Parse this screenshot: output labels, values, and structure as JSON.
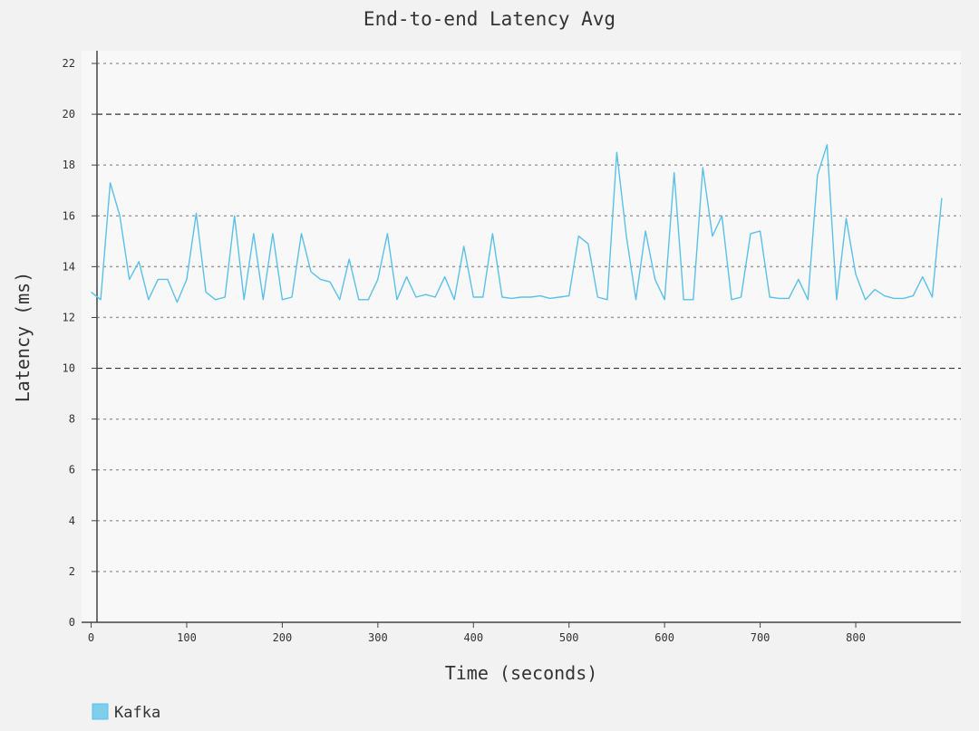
{
  "chart_data": {
    "type": "line",
    "title": "End-to-end Latency Avg",
    "xlabel": "Time (seconds)",
    "ylabel": "Latency (ms)",
    "xlim": [
      -10,
      910
    ],
    "ylim": [
      0,
      22.5
    ],
    "x_ticks": [
      0,
      100,
      200,
      300,
      400,
      500,
      600,
      700,
      800
    ],
    "y_ticks": [
      0,
      2,
      4,
      6,
      8,
      10,
      12,
      14,
      16,
      18,
      20,
      22
    ],
    "major_gridlines": [
      10,
      20
    ],
    "grid": true,
    "legend": "bottom-left",
    "series": [
      {
        "name": "Kafka",
        "color": "#5bc0e8",
        "x": [
          0,
          10,
          20,
          30,
          40,
          50,
          60,
          70,
          80,
          90,
          100,
          110,
          120,
          130,
          140,
          150,
          160,
          170,
          180,
          190,
          200,
          210,
          220,
          230,
          240,
          250,
          260,
          270,
          280,
          290,
          300,
          310,
          320,
          330,
          340,
          350,
          360,
          370,
          380,
          390,
          400,
          410,
          420,
          430,
          440,
          450,
          460,
          470,
          480,
          490,
          500,
          510,
          520,
          530,
          540,
          550,
          560,
          570,
          580,
          590,
          600,
          610,
          620,
          630,
          640,
          650,
          660,
          670,
          680,
          690,
          700,
          710,
          720,
          730,
          740,
          750,
          760,
          770,
          780,
          790,
          800,
          810,
          820,
          830,
          840,
          850,
          860,
          870,
          880,
          890
        ],
        "values": [
          13.0,
          12.7,
          17.3,
          16.0,
          13.5,
          14.2,
          12.7,
          13.5,
          13.5,
          12.6,
          13.5,
          16.1,
          13.0,
          12.7,
          12.8,
          16.0,
          12.7,
          15.3,
          12.7,
          15.3,
          12.7,
          12.8,
          15.3,
          13.8,
          13.5,
          13.4,
          12.7,
          14.3,
          12.7,
          12.7,
          13.5,
          15.3,
          12.7,
          13.6,
          12.8,
          12.9,
          12.8,
          13.6,
          12.7,
          14.8,
          12.8,
          12.8,
          15.3,
          12.8,
          12.75,
          12.8,
          12.8,
          12.85,
          12.75,
          12.8,
          12.85,
          15.2,
          14.9,
          12.8,
          12.7,
          18.5,
          15.2,
          12.7,
          15.4,
          13.5,
          12.7,
          17.7,
          12.7,
          12.7,
          17.9,
          15.2,
          16.0,
          12.7,
          12.8,
          15.3,
          15.4,
          12.8,
          12.75,
          12.75,
          13.5,
          12.7,
          17.6,
          18.8,
          12.7,
          15.9,
          13.7,
          12.7,
          13.1,
          12.85,
          12.75,
          12.75,
          12.85,
          13.6,
          12.8,
          16.7
        ]
      }
    ]
  }
}
